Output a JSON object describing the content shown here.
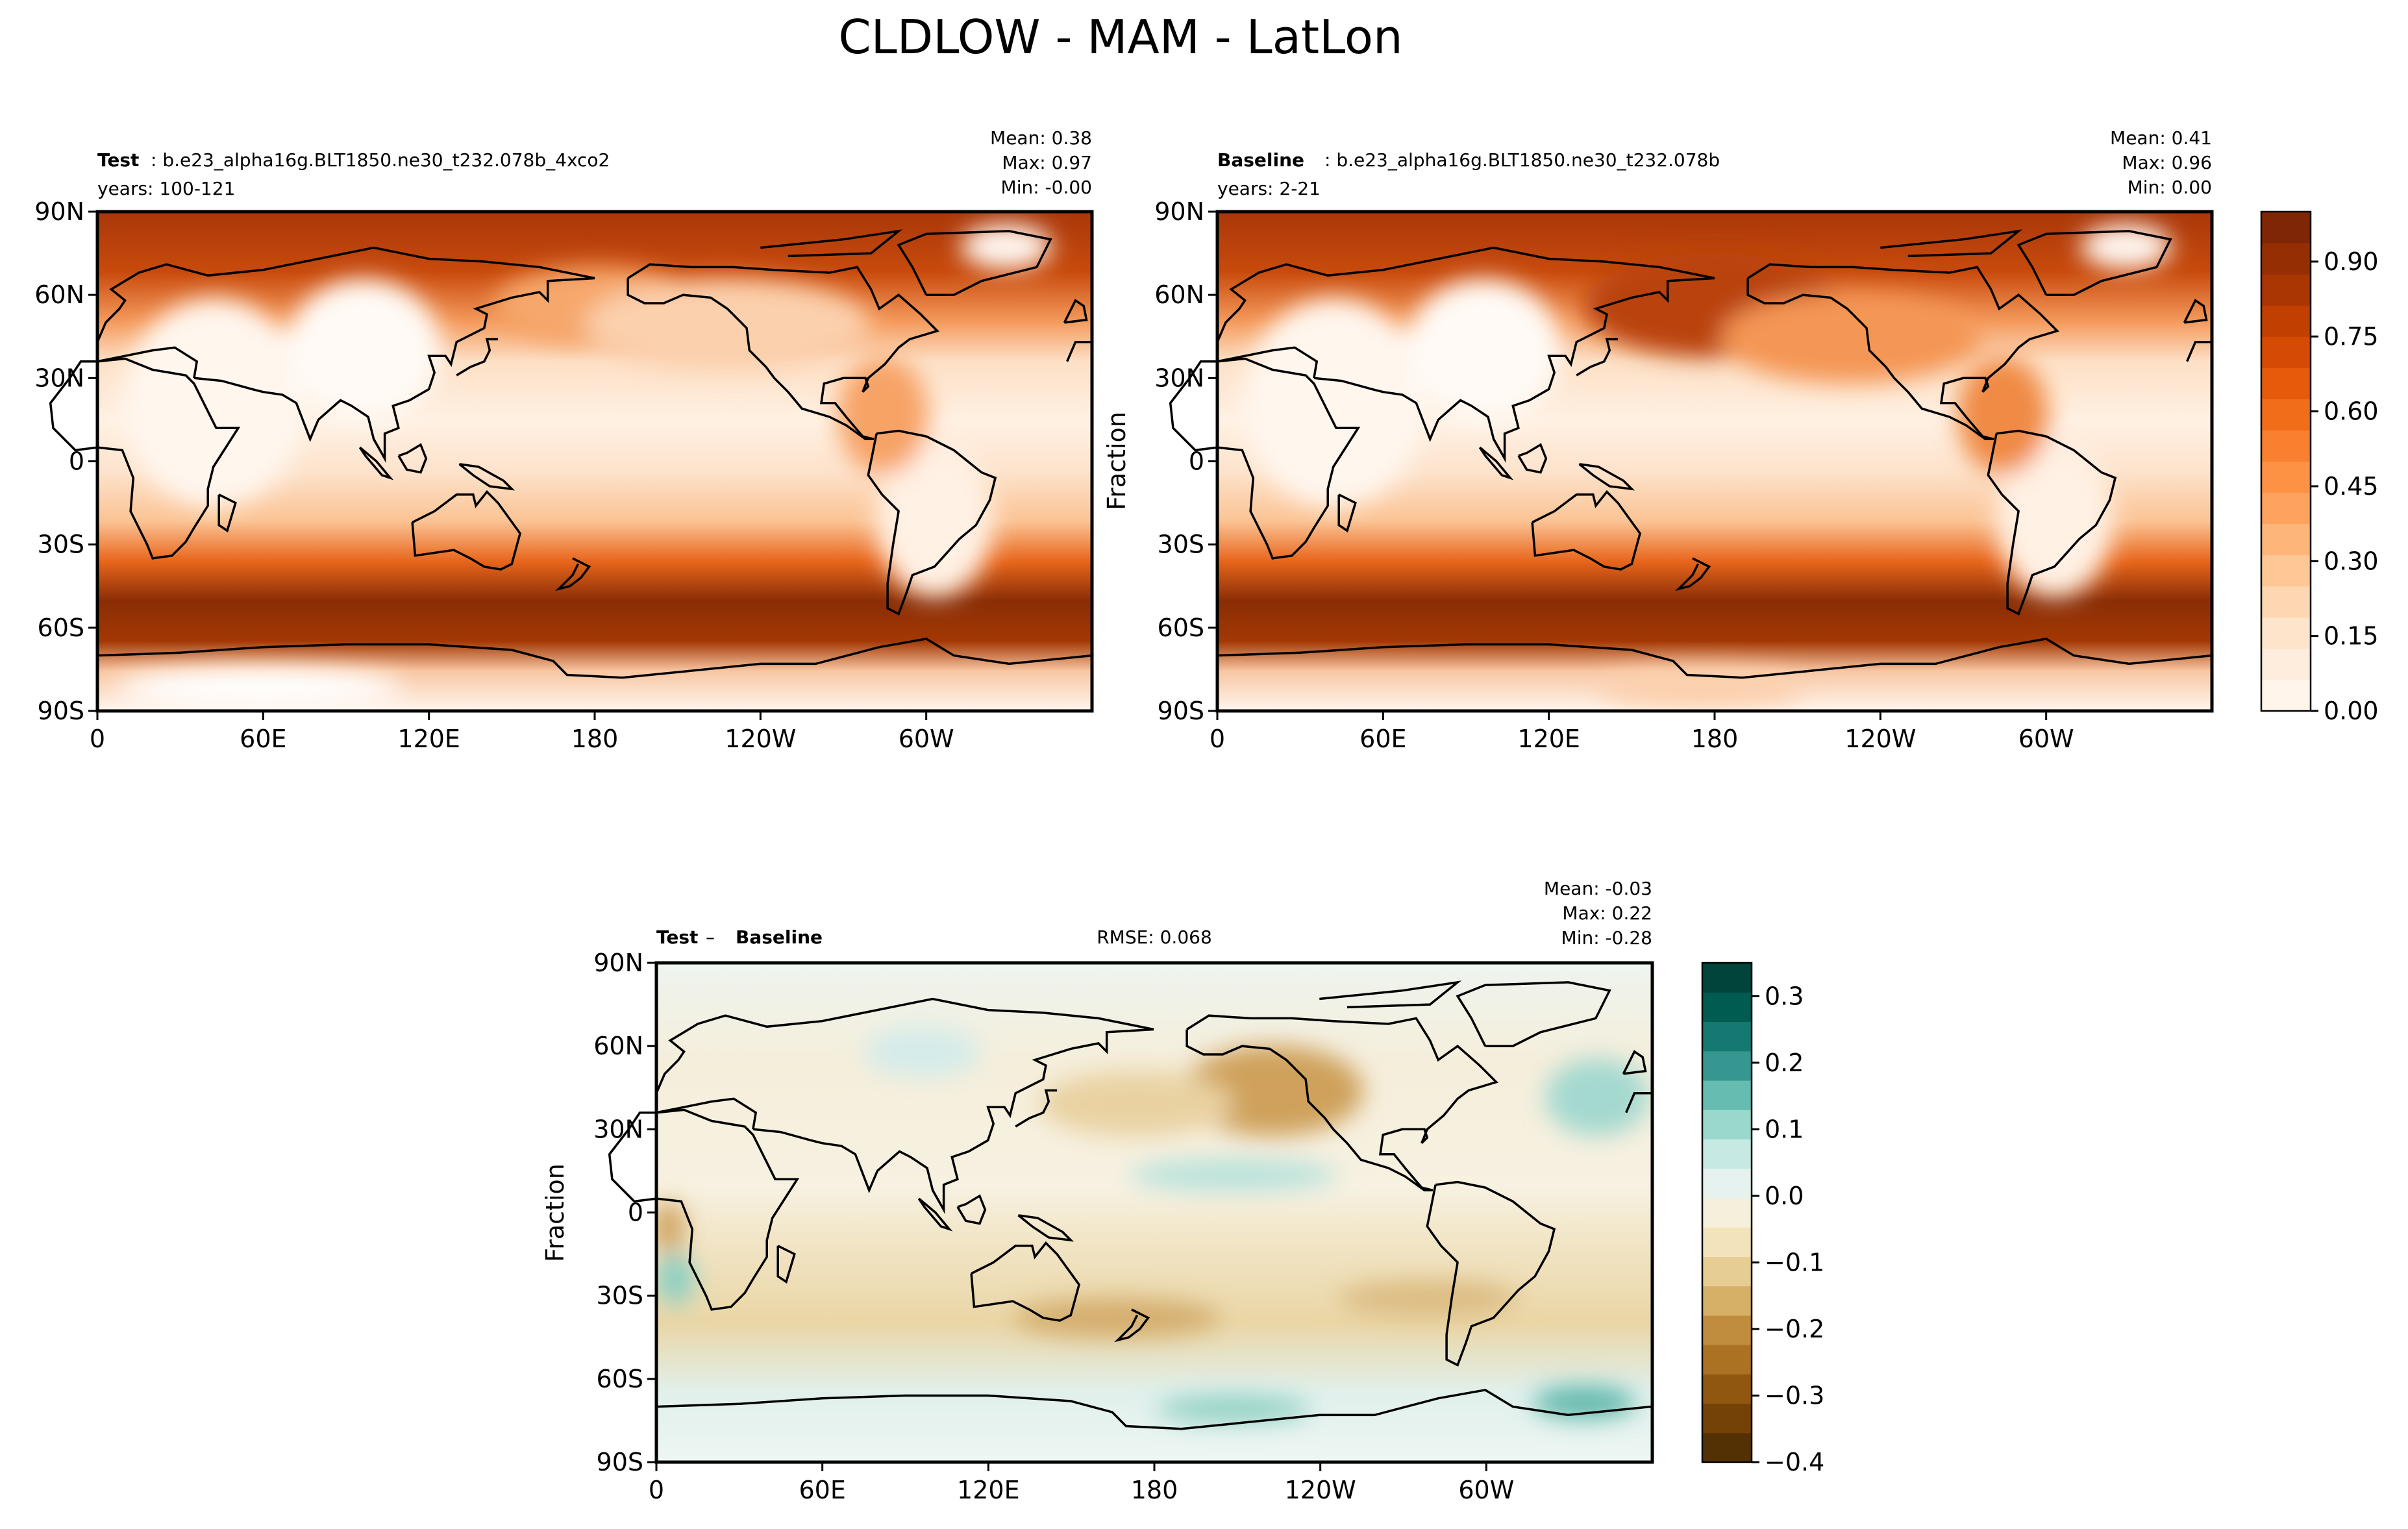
{
  "title": "CLDLOW - MAM - LatLon",
  "panels": [
    {
      "id": "test",
      "label_bold": "Test",
      "label_rest": ": b.e23_alpha16g.BLT1850.ne30_t232.078b_4xco2",
      "years": "years: 100-121",
      "stats": [
        "Mean:  0.38",
        "Max:  0.97",
        "Min: -0.00"
      ],
      "ylabel": ""
    },
    {
      "id": "baseline",
      "label_bold": "Baseline",
      "label_rest": ": b.e23_alpha16g.BLT1850.ne30_t232.078b",
      "years": "years: 2-21",
      "stats": [
        "Mean:  0.41",
        "Max:  0.96",
        "Min:  0.00"
      ],
      "ylabel": "Fraction"
    },
    {
      "id": "diff",
      "label_bold": "Test",
      "label_mid": " – ",
      "label_bold2": "Baseline",
      "rmse": "RMSE: 0.068",
      "stats": [
        "Mean: -0.03",
        "Max:  0.22",
        "Min: -0.28"
      ],
      "ylabel": "Fraction"
    }
  ],
  "axes": {
    "lat_ticks": [
      "90N",
      "60N",
      "30N",
      "0",
      "30S",
      "60S",
      "90S"
    ],
    "lon_ticks": [
      "0",
      "60E",
      "120E",
      "180",
      "120W",
      "60W"
    ]
  },
  "colorbar_main": {
    "ticks": [
      "0.00",
      "0.15",
      "0.30",
      "0.45",
      "0.60",
      "0.75",
      "0.90"
    ],
    "colors": [
      "#fff5eb",
      "#feeddc",
      "#fde4cb",
      "#fdd7b1",
      "#fdc895",
      "#fdb679",
      "#fda35e",
      "#fd9244",
      "#f8802e",
      "#f16d1a",
      "#e55b0b",
      "#d64b04",
      "#c23f02",
      "#aa3603",
      "#952f03",
      "#7f2704"
    ]
  },
  "colorbar_diff": {
    "ticks": [
      "0.3",
      "0.2",
      "0.1",
      "0.0",
      "−0.1",
      "−0.2",
      "−0.3",
      "−0.4"
    ],
    "colors": [
      "#543005",
      "#744206",
      "#8f570f",
      "#aa7222",
      "#c08d3e",
      "#d5b066",
      "#e6cd94",
      "#f2e3ba",
      "#f6efdb",
      "#e5f2ef",
      "#c6e9e4",
      "#9ad8cd",
      "#66bcb0",
      "#35978f",
      "#147a71",
      "#005b51",
      "#01443b"
    ]
  },
  "chart_data": [
    {
      "type": "heatmap",
      "title": "Test : b.e23_alpha16g.BLT1850.ne30_t232.078b_4xco2",
      "subtitle": "years: 100-121",
      "variable": "CLDLOW",
      "season": "MAM",
      "ylabel": "",
      "x_ticks": [
        "0",
        "60E",
        "120E",
        "180",
        "120W",
        "60W"
      ],
      "y_ticks": [
        "90N",
        "60N",
        "30N",
        "0",
        "30S",
        "60S",
        "90S"
      ],
      "stats": {
        "mean": 0.38,
        "max": 0.97,
        "min": -0.0
      },
      "colorbar_range": [
        0.0,
        1.0
      ],
      "colormap": "Oranges",
      "grid": false
    },
    {
      "type": "heatmap",
      "title": "Baseline : b.e23_alpha16g.BLT1850.ne30_t232.078b",
      "subtitle": "years: 2-21",
      "variable": "CLDLOW",
      "season": "MAM",
      "ylabel": "Fraction",
      "x_ticks": [
        "0",
        "60E",
        "120E",
        "180",
        "120W",
        "60W"
      ],
      "y_ticks": [
        "90N",
        "60N",
        "30N",
        "0",
        "30S",
        "60S",
        "90S"
      ],
      "stats": {
        "mean": 0.41,
        "max": 0.96,
        "min": 0.0
      },
      "colorbar_range": [
        0.0,
        1.0
      ],
      "colormap": "Oranges",
      "grid": false
    },
    {
      "type": "heatmap",
      "title": "Test – Baseline",
      "ylabel": "Fraction",
      "rmse": 0.068,
      "x_ticks": [
        "0",
        "60E",
        "120E",
        "180",
        "120W",
        "60W"
      ],
      "y_ticks": [
        "90N",
        "60N",
        "30N",
        "0",
        "30S",
        "60S",
        "90S"
      ],
      "stats": {
        "mean": -0.03,
        "max": 0.22,
        "min": -0.28
      },
      "colorbar_range": [
        -0.4,
        0.35
      ],
      "colormap": "BrBG",
      "grid": false
    }
  ]
}
